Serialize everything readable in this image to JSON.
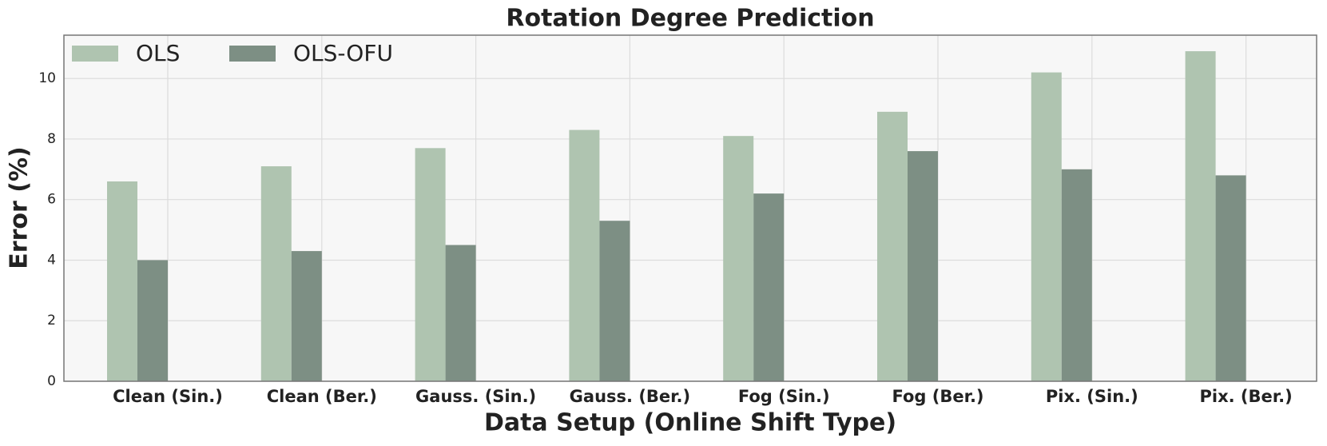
{
  "chart_data": {
    "type": "bar",
    "title": "Rotation Degree Prediction",
    "x_label": "Data Setup (Online Shift Type)",
    "y_label": "Error (%)",
    "categories": [
      "Clean (Sin.)",
      "Clean (Ber.)",
      "Gauss. (Sin.)",
      "Gauss. (Ber.)",
      "Fog (Sin.)",
      "Fog (Ber.)",
      "Pix. (Sin.)",
      "Pix. (Ber.)"
    ],
    "series": [
      {
        "name": "OLS",
        "color": "#afc4b0",
        "values": [
          6.6,
          7.1,
          7.7,
          8.3,
          8.1,
          8.9,
          10.2,
          10.9
        ]
      },
      {
        "name": "OLS-OFU",
        "color": "#7d8f84",
        "values": [
          4.0,
          4.3,
          4.5,
          5.3,
          6.2,
          7.6,
          7.0,
          6.8
        ]
      }
    ],
    "ylim": [
      0,
      11.43
    ],
    "yticks": [
      0,
      2,
      4,
      6,
      8,
      10
    ],
    "grid": true,
    "legend": "upper-left"
  }
}
